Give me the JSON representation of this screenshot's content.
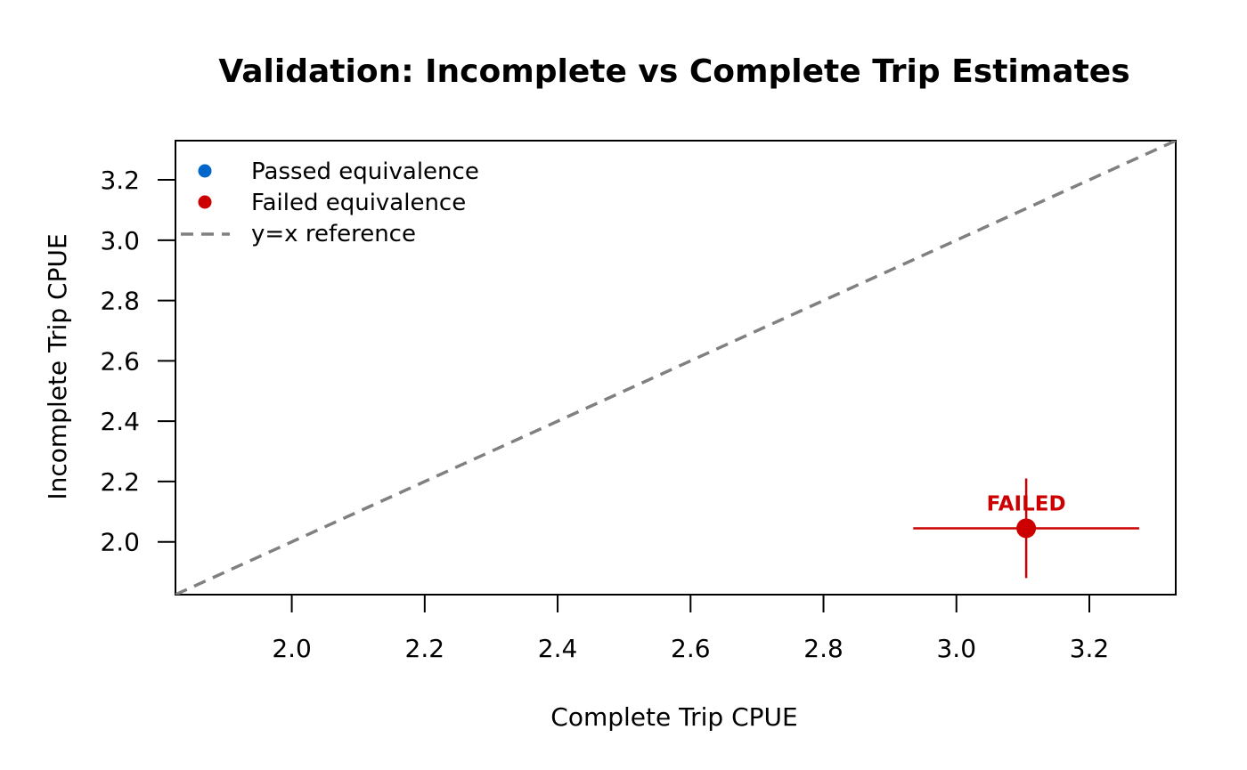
{
  "chart_data": {
    "type": "scatter",
    "title": "Validation: Incomplete vs Complete Trip Estimates",
    "xlabel": "Complete Trip CPUE",
    "ylabel": "Incomplete Trip CPUE",
    "xlim": [
      1.825,
      3.33
    ],
    "ylim": [
      1.825,
      3.33
    ],
    "xticks": [
      2.0,
      2.2,
      2.4,
      2.6,
      2.8,
      3.0,
      3.2
    ],
    "yticks": [
      2.0,
      2.2,
      2.4,
      2.6,
      2.8,
      3.0,
      3.2
    ],
    "xtick_labels": [
      "2.0",
      "2.2",
      "2.4",
      "2.6",
      "2.8",
      "3.0",
      "3.2"
    ],
    "ytick_labels": [
      "2.0",
      "2.2",
      "2.4",
      "2.6",
      "2.8",
      "3.0",
      "3.2"
    ],
    "grid": false,
    "legend_position": "top-left",
    "legend": [
      {
        "label": "Passed equivalence",
        "kind": "point",
        "color": "#0066cc"
      },
      {
        "label": "Failed equivalence",
        "kind": "point",
        "color": "#cc0000"
      },
      {
        "label": "y=x reference",
        "kind": "dashed-line",
        "color": "#808080"
      }
    ],
    "reference_line": {
      "type": "y=x",
      "color": "#808080"
    },
    "points": [
      {
        "x": 3.105,
        "y": 2.045,
        "x_err": [
          2.935,
          3.275
        ],
        "y_err": [
          1.88,
          2.21
        ],
        "status": "failed",
        "color": "#cc0000",
        "label": "FAILED"
      }
    ]
  }
}
